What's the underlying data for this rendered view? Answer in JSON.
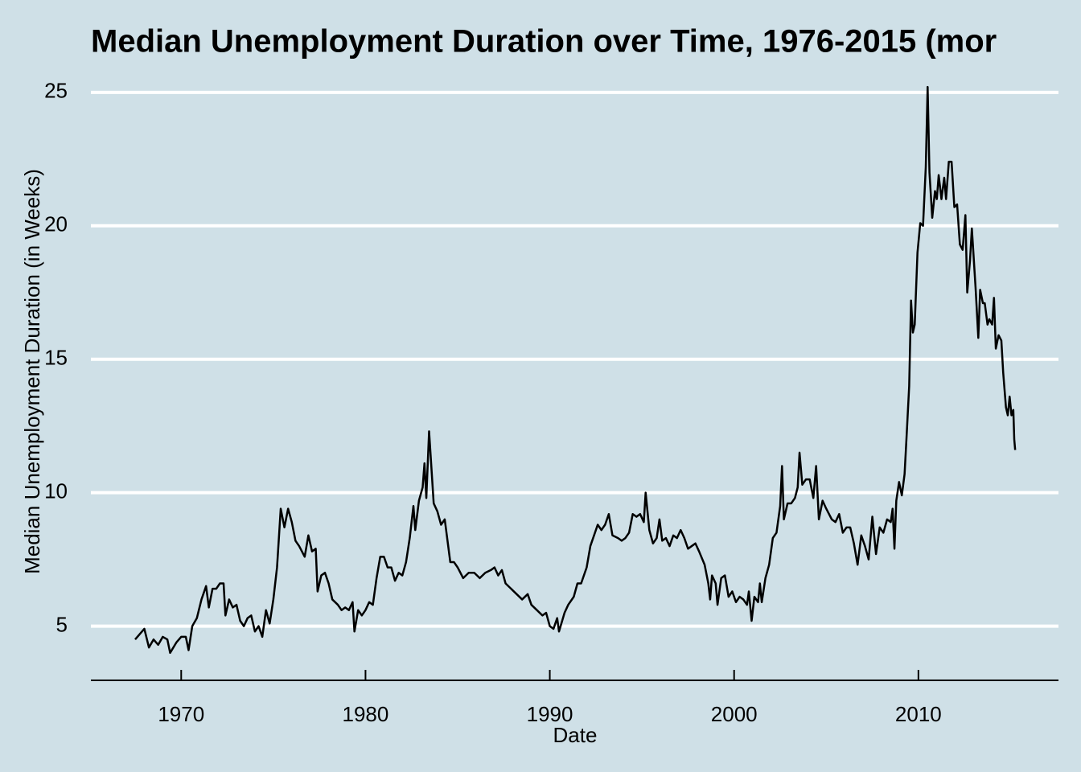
{
  "chart_data": {
    "type": "line",
    "title": "Median Unemployment Duration over Time, 1976-2015 (mor",
    "x_label": "Date",
    "y_label": "Median Unemployment Duration (in Weeks)",
    "color": "#000000",
    "grid": true,
    "x": [
      1967.5,
      1967.75,
      1968.0,
      1968.25,
      1968.5,
      1968.75,
      1969.0,
      1969.25,
      1969.4,
      1969.75,
      1970.0,
      1970.25,
      1970.4,
      1970.6,
      1970.85,
      1971.1,
      1971.35,
      1971.5,
      1971.7,
      1971.9,
      1972.1,
      1972.3,
      1972.4,
      1972.6,
      1972.8,
      1973.0,
      1973.2,
      1973.4,
      1973.6,
      1973.8,
      1974.0,
      1974.2,
      1974.4,
      1974.6,
      1974.8,
      1975.0,
      1975.2,
      1975.4,
      1975.6,
      1975.8,
      1976.0,
      1976.2,
      1976.4,
      1976.7,
      1976.9,
      1977.1,
      1977.3,
      1977.4,
      1977.6,
      1977.8,
      1978.0,
      1978.2,
      1978.5,
      1978.7,
      1978.9,
      1979.1,
      1979.3,
      1979.4,
      1979.6,
      1979.8,
      1980.0,
      1980.2,
      1980.4,
      1980.6,
      1980.8,
      1981.0,
      1981.2,
      1981.4,
      1981.6,
      1981.8,
      1982.0,
      1982.2,
      1982.4,
      1982.6,
      1982.7,
      1982.9,
      1983.1,
      1983.2,
      1983.3,
      1983.45,
      1983.7,
      1983.9,
      1984.1,
      1984.3,
      1984.45,
      1984.6,
      1984.8,
      1985.0,
      1985.3,
      1985.6,
      1985.9,
      1986.2,
      1986.5,
      1986.8,
      1987.0,
      1987.2,
      1987.4,
      1987.6,
      1987.9,
      1988.2,
      1988.5,
      1988.8,
      1989.0,
      1989.3,
      1989.6,
      1989.8,
      1990.0,
      1990.2,
      1990.4,
      1990.5,
      1990.8,
      1991.0,
      1991.3,
      1991.5,
      1991.7,
      1992.0,
      1992.2,
      1992.4,
      1992.6,
      1992.8,
      1993.0,
      1993.2,
      1993.4,
      1993.7,
      1993.9,
      1994.1,
      1994.3,
      1994.5,
      1994.7,
      1994.9,
      1995.1,
      1995.2,
      1995.4,
      1995.6,
      1995.8,
      1995.95,
      1996.1,
      1996.3,
      1996.5,
      1996.7,
      1996.9,
      1997.1,
      1997.3,
      1997.5,
      1997.7,
      1997.9,
      1998.1,
      1998.4,
      1998.6,
      1998.7,
      1998.8,
      1999.0,
      1999.1,
      1999.3,
      1999.5,
      1999.7,
      1999.9,
      2000.1,
      2000.3,
      2000.5,
      2000.7,
      2000.8,
      2000.95,
      2001.1,
      2001.3,
      2001.4,
      2001.5,
      2001.7,
      2001.9,
      2002.1,
      2002.3,
      2002.5,
      2002.6,
      2002.7,
      2002.9,
      2003.1,
      2003.3,
      2003.45,
      2003.55,
      2003.7,
      2003.9,
      2004.1,
      2004.3,
      2004.45,
      2004.6,
      2004.8,
      2005.0,
      2005.3,
      2005.5,
      2005.7,
      2005.9,
      2006.1,
      2006.3,
      2006.5,
      2006.7,
      2006.9,
      2007.1,
      2007.3,
      2007.5,
      2007.7,
      2007.9,
      2008.1,
      2008.3,
      2008.5,
      2008.6,
      2008.7,
      2008.8,
      2008.95,
      2009.1,
      2009.25,
      2009.35,
      2009.5,
      2009.6,
      2009.7,
      2009.8,
      2009.95,
      2010.1,
      2010.25,
      2010.4,
      2010.5,
      2010.6,
      2010.75,
      2010.9,
      2011.0,
      2011.1,
      2011.25,
      2011.4,
      2011.5,
      2011.65,
      2011.8,
      2011.95,
      2012.1,
      2012.25,
      2012.4,
      2012.55,
      2012.65,
      2012.8,
      2012.9,
      2013.1,
      2013.25,
      2013.35,
      2013.5,
      2013.6,
      2013.75,
      2013.85,
      2014.0,
      2014.1,
      2014.2,
      2014.35,
      2014.5,
      2014.6,
      2014.75,
      2014.85,
      2014.95,
      2015.05,
      2015.15,
      2015.2,
      2015.25
    ],
    "values": [
      4.5,
      4.7,
      4.9,
      4.2,
      4.5,
      4.3,
      4.6,
      4.5,
      4.0,
      4.4,
      4.6,
      4.6,
      4.1,
      5.0,
      5.3,
      6.0,
      6.5,
      5.7,
      6.4,
      6.4,
      6.6,
      6.6,
      5.4,
      6.0,
      5.7,
      5.8,
      5.2,
      5.0,
      5.3,
      5.4,
      4.8,
      5.0,
      4.6,
      5.6,
      5.1,
      6.0,
      7.2,
      9.4,
      8.7,
      9.4,
      8.9,
      8.2,
      8.0,
      7.6,
      8.4,
      7.8,
      7.9,
      6.3,
      6.9,
      7.0,
      6.6,
      6.0,
      5.8,
      5.6,
      5.7,
      5.6,
      5.9,
      4.8,
      5.6,
      5.4,
      5.6,
      5.9,
      5.8,
      6.8,
      7.6,
      7.6,
      7.2,
      7.2,
      6.7,
      7.0,
      6.9,
      7.4,
      8.3,
      9.5,
      8.6,
      9.7,
      10.2,
      11.1,
      9.8,
      12.3,
      9.6,
      9.3,
      8.8,
      9.0,
      8.2,
      7.4,
      7.4,
      7.2,
      6.8,
      7.0,
      7.0,
      6.8,
      7.0,
      7.1,
      7.2,
      6.9,
      7.1,
      6.6,
      6.4,
      6.2,
      6.0,
      6.2,
      5.8,
      5.6,
      5.4,
      5.5,
      5.0,
      4.9,
      5.3,
      4.8,
      5.5,
      5.8,
      6.1,
      6.6,
      6.6,
      7.2,
      8.0,
      8.4,
      8.8,
      8.6,
      8.8,
      9.2,
      8.4,
      8.3,
      8.2,
      8.3,
      8.5,
      9.2,
      9.1,
      9.2,
      8.9,
      10.0,
      8.6,
      8.1,
      8.3,
      9.0,
      8.2,
      8.3,
      8.0,
      8.4,
      8.3,
      8.6,
      8.3,
      7.9,
      8.0,
      8.1,
      7.8,
      7.3,
      6.6,
      6.0,
      6.9,
      6.6,
      5.8,
      6.8,
      6.9,
      6.1,
      6.3,
      5.9,
      6.1,
      6.0,
      5.8,
      6.3,
      5.2,
      6.1,
      5.9,
      6.6,
      5.9,
      6.8,
      7.3,
      8.3,
      8.5,
      9.5,
      11.0,
      9.0,
      9.6,
      9.6,
      9.8,
      10.2,
      11.5,
      10.3,
      10.5,
      10.5,
      9.8,
      11.0,
      9.0,
      9.7,
      9.4,
      9.0,
      8.9,
      9.2,
      8.5,
      8.7,
      8.7,
      8.1,
      7.3,
      8.4,
      8.0,
      7.5,
      9.1,
      7.7,
      8.7,
      8.5,
      9.0,
      8.9,
      9.4,
      7.9,
      9.7,
      10.4,
      9.9,
      10.7,
      12.0,
      14.0,
      17.2,
      16.0,
      16.3,
      19.0,
      20.1,
      20.0,
      22.2,
      25.2,
      22.0,
      20.3,
      21.3,
      21.0,
      21.9,
      21.0,
      21.8,
      21.0,
      22.4,
      22.4,
      20.7,
      20.8,
      19.3,
      19.1,
      20.4,
      17.5,
      18.7,
      19.9,
      17.7,
      15.8,
      17.6,
      17.1,
      17.1,
      16.3,
      16.5,
      16.3,
      17.3,
      15.4,
      15.9,
      15.7,
      14.5,
      13.2,
      12.9,
      13.6,
      12.9,
      13.1,
      12.0,
      11.6
    ],
    "xlim": [
      1965.1,
      2017.6
    ],
    "xticks": [
      1970,
      1980,
      1990,
      2000,
      2010
    ],
    "ylim": [
      2.94,
      26.26
    ],
    "yticks": [
      5,
      10,
      15,
      20,
      25
    ]
  }
}
